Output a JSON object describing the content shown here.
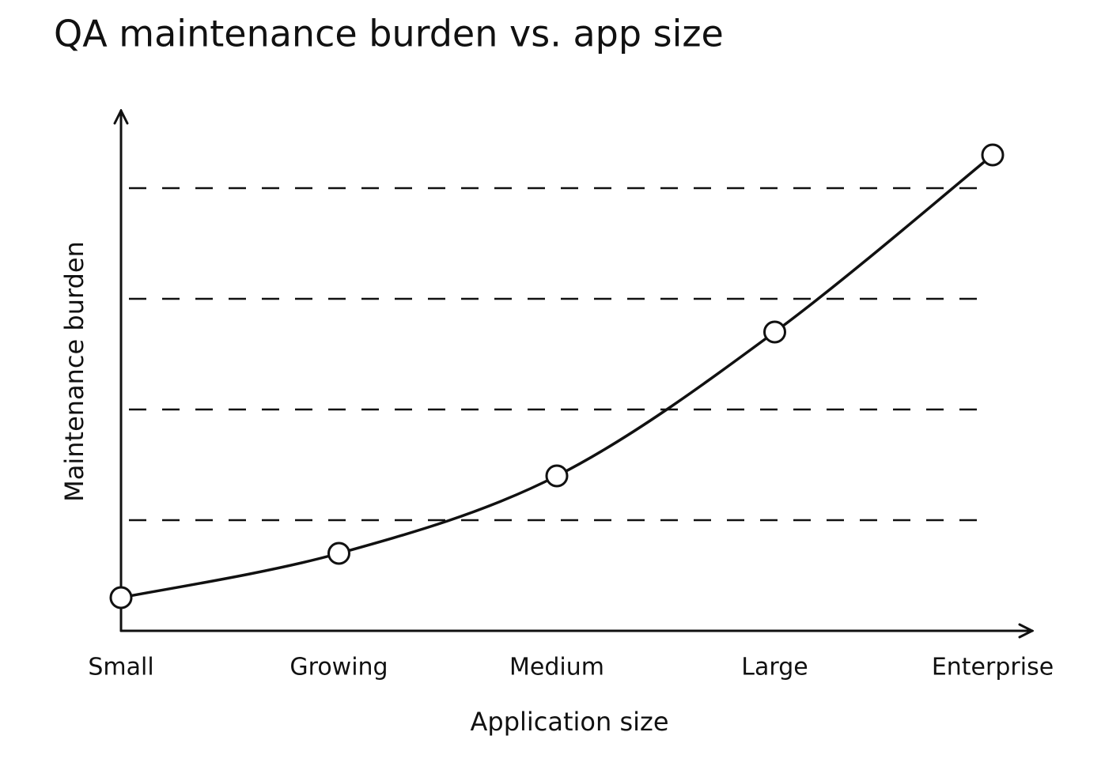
{
  "chart_data": {
    "type": "line",
    "title": "QA maintenance burden vs. app size",
    "x_label": "Application size",
    "y_label": "Maintenance burden",
    "categories": [
      "Small",
      "Growing",
      "Medium",
      "Large",
      "Enterprise"
    ],
    "values": [
      0.3,
      0.7,
      1.4,
      2.7,
      4.3
    ],
    "color": "#111111",
    "ylim": [
      0,
      4.7
    ],
    "yticks": [
      1,
      2,
      3,
      4
    ],
    "grid": true
  }
}
